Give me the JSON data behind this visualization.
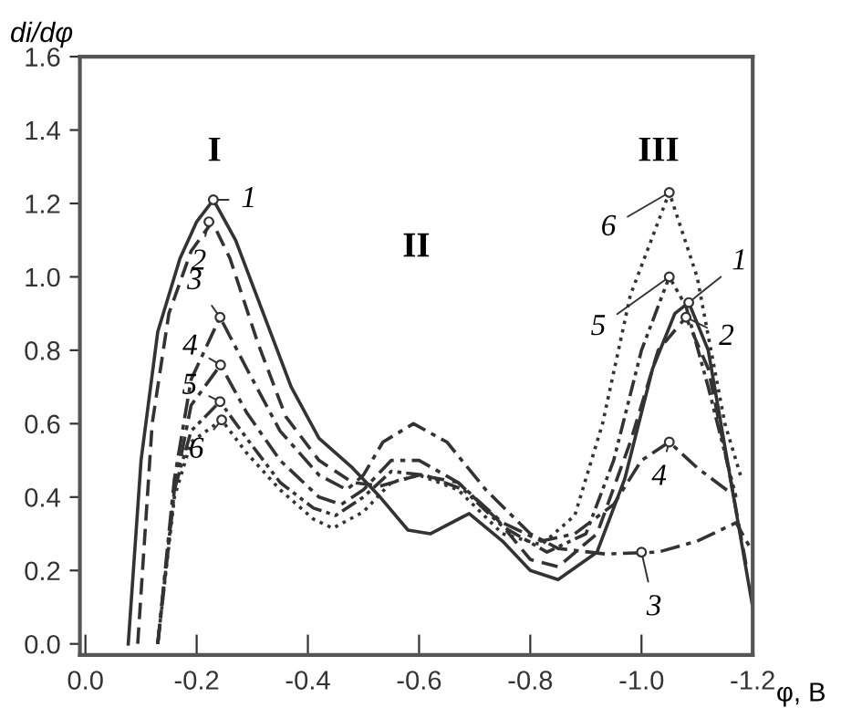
{
  "chart_data": {
    "type": "line",
    "ylabel": "di/dφ",
    "xlabel": "φ, B",
    "xlim": [
      0.01,
      -1.2
    ],
    "ylim": [
      -0.03,
      1.6
    ],
    "xticks": [
      {
        "value": 0.0,
        "label": "0.0"
      },
      -0.2,
      -0.4,
      -0.6,
      -0.8,
      {
        "value": -1.0,
        "label": "-1.0"
      },
      -1.2
    ],
    "yticks": [
      {
        "value": 0.0,
        "label": "0.0"
      },
      0.2,
      0.4,
      0.6,
      0.8,
      {
        "value": 1.0,
        "label": "1.0"
      },
      1.2,
      1.4,
      1.6
    ],
    "grid": false,
    "series": [
      {
        "color": "#333333",
        "line_style": "solid",
        "x": [
          -0.077,
          -0.1,
          -0.13,
          -0.17,
          -0.2,
          -0.23,
          -0.27,
          -0.32,
          -0.37,
          -0.42,
          -0.48,
          -0.53,
          -0.58,
          -0.62,
          -0.69,
          -0.75,
          -0.8,
          -0.85,
          -0.92,
          -0.97,
          -1.02,
          -1.06,
          -1.085,
          -1.12,
          -1.16,
          -1.2
        ],
        "values": [
          0,
          0.5,
          0.85,
          1.05,
          1.15,
          1.21,
          1.1,
          0.9,
          0.7,
          0.56,
          0.48,
          0.4,
          0.31,
          0.3,
          0.355,
          0.28,
          0.2,
          0.175,
          0.25,
          0.45,
          0.75,
          0.9,
          0.93,
          0.8,
          0.45,
          0.1
        ]
      },
      {
        "color": "#333333",
        "line_style": "dashed",
        "x": [
          -0.094,
          -0.12,
          -0.15,
          -0.19,
          -0.228,
          -0.26,
          -0.31,
          -0.36,
          -0.42,
          -0.48,
          -0.53,
          -0.6,
          -0.67,
          -0.74,
          -0.8,
          -0.85,
          -0.92,
          -0.98,
          -1.03,
          -1.08,
          -1.12,
          -1.16,
          -1.19
        ],
        "values": [
          0,
          0.6,
          0.9,
          1.07,
          1.15,
          1.05,
          0.82,
          0.62,
          0.5,
          0.44,
          0.43,
          0.46,
          0.44,
          0.34,
          0.23,
          0.21,
          0.3,
          0.55,
          0.8,
          0.89,
          0.75,
          0.45,
          0.2
        ]
      },
      {
        "color": "#333333",
        "line_style": "dashdot",
        "x": [
          -0.13,
          -0.16,
          -0.19,
          -0.242,
          -0.29,
          -0.35,
          -0.42,
          -0.47,
          -0.5,
          -0.535,
          -0.59,
          -0.65,
          -0.72,
          -0.8,
          -0.85,
          -0.935,
          -1.03,
          -1.1,
          -1.17,
          -1.2
        ],
        "values": [
          0,
          0.45,
          0.72,
          0.89,
          0.75,
          0.58,
          0.46,
          0.42,
          0.46,
          0.55,
          0.6,
          0.55,
          0.42,
          0.3,
          0.26,
          0.245,
          0.25,
          0.28,
          0.33,
          0.25
        ]
      },
      {
        "color": "#333333",
        "line_style": "dashdot",
        "x": [
          -0.13,
          -0.16,
          -0.19,
          -0.243,
          -0.29,
          -0.35,
          -0.42,
          -0.46,
          -0.5,
          -0.55,
          -0.6,
          -0.67,
          -0.75,
          -0.82,
          -0.88,
          -0.95,
          -1.0,
          -1.05,
          -1.1,
          -1.17
        ],
        "values": [
          0,
          0.42,
          0.65,
          0.76,
          0.63,
          0.5,
          0.4,
          0.38,
          0.42,
          0.5,
          0.5,
          0.44,
          0.33,
          0.28,
          0.3,
          0.38,
          0.5,
          0.55,
          0.48,
          0.4
        ]
      },
      {
        "color": "#333333",
        "line_style": "dashdotdot",
        "x": [
          -0.13,
          -0.16,
          -0.19,
          -0.242,
          -0.29,
          -0.35,
          -0.41,
          -0.45,
          -0.5,
          -0.55,
          -0.61,
          -0.68,
          -0.75,
          -0.83,
          -0.9,
          -0.95,
          -1.0,
          -1.05,
          -1.08,
          -1.12,
          -1.17
        ],
        "values": [
          0,
          0.42,
          0.58,
          0.66,
          0.56,
          0.44,
          0.37,
          0.35,
          0.4,
          0.47,
          0.46,
          0.42,
          0.32,
          0.25,
          0.3,
          0.5,
          0.8,
          1.0,
          0.92,
          0.7,
          0.4
        ]
      },
      {
        "color": "#333333",
        "line_style": "dotted",
        "x": [
          -0.13,
          -0.16,
          -0.19,
          -0.245,
          -0.29,
          -0.35,
          -0.41,
          -0.445,
          -0.5,
          -0.55,
          -0.6,
          -0.67,
          -0.75,
          -0.82,
          -0.88,
          -0.93,
          -0.98,
          -1.05,
          -1.1,
          -1.15,
          -1.18
        ],
        "values": [
          0,
          0.4,
          0.55,
          0.61,
          0.52,
          0.42,
          0.34,
          0.315,
          0.36,
          0.44,
          0.46,
          0.42,
          0.3,
          0.27,
          0.35,
          0.6,
          0.95,
          1.23,
          1.0,
          0.6,
          0.45
        ]
      }
    ],
    "annotations": [
      {
        "text": "1",
        "x": -0.23,
        "y": 1.21
      },
      {
        "text": "2",
        "x": -0.222,
        "y": 1.15
      },
      {
        "text": "3",
        "x": -0.242,
        "y": 0.89
      },
      {
        "text": "4",
        "x": -0.243,
        "y": 0.76
      },
      {
        "text": "5",
        "x": -0.242,
        "y": 0.66
      },
      {
        "text": "6",
        "x": -0.245,
        "y": 0.61
      },
      {
        "text": "6",
        "x": -1.05,
        "y": 1.23
      },
      {
        "text": "5",
        "x": -1.05,
        "y": 1.0
      },
      {
        "text": "1",
        "x": -1.085,
        "y": 0.93
      },
      {
        "text": "2",
        "x": -1.08,
        "y": 0.89
      },
      {
        "text": "4",
        "x": -1.05,
        "y": 0.55
      },
      {
        "text": "3",
        "x": -1.0,
        "y": 0.25
      },
      "I",
      "II",
      "III"
    ]
  }
}
